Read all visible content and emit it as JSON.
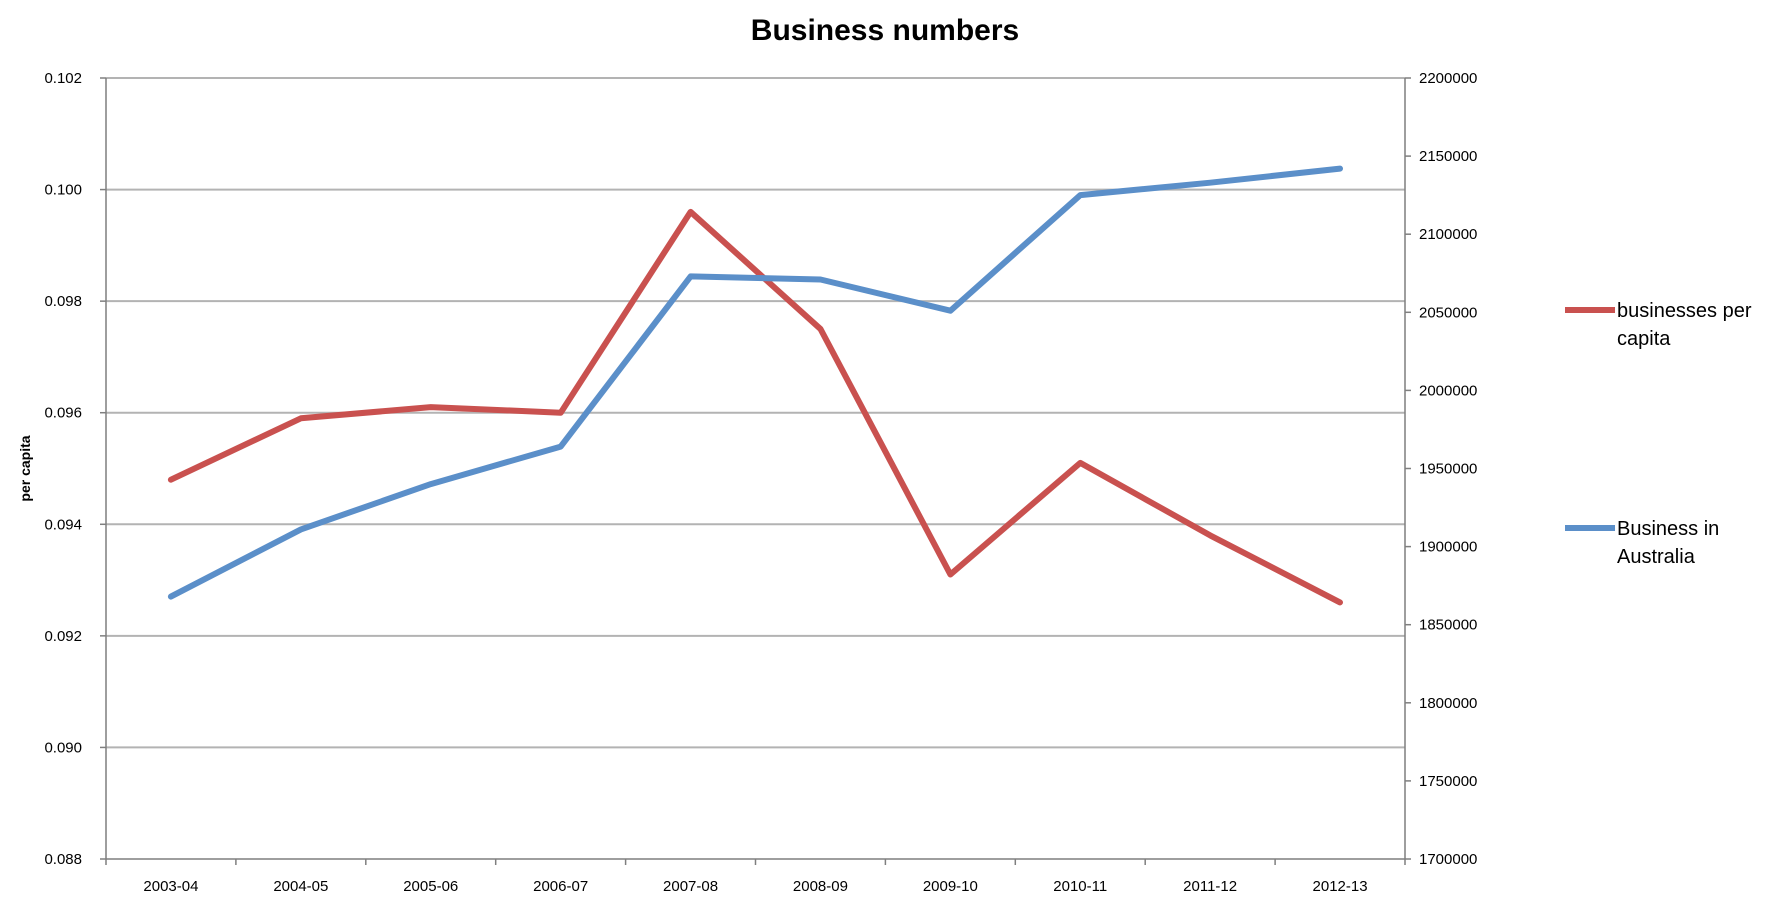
{
  "chart_data": {
    "type": "line",
    "title": "Business numbers",
    "xlabel": "",
    "ylabel": "per capita",
    "y2label": "",
    "categories": [
      "2003-04",
      "2004-05",
      "2005-06",
      "2006-07",
      "2007-08",
      "2008-09",
      "2009-10",
      "2010-11",
      "2011-12",
      "2012-13"
    ],
    "ylim": [
      0.088,
      0.102
    ],
    "yticks": [
      "0.088",
      "0.090",
      "0.092",
      "0.094",
      "0.096",
      "0.098",
      "0.100",
      "0.102"
    ],
    "y2lim": [
      1700000,
      2200000
    ],
    "y2ticks": [
      "1700000",
      "1750000",
      "1800000",
      "1850000",
      "1900000",
      "1950000",
      "2000000",
      "2050000",
      "2100000",
      "2150000",
      "2200000"
    ],
    "grid": true,
    "legend": "right",
    "series": [
      {
        "name": "businesses per capita",
        "legend_lines": [
          "businesses per",
          "capita"
        ],
        "axis": "left",
        "color": "#c9514f",
        "values": [
          0.0948,
          0.0959,
          0.0961,
          0.096,
          0.0996,
          0.0975,
          0.0931,
          0.0951,
          0.0938,
          0.0926
        ]
      },
      {
        "name": "Business in Australia",
        "legend_lines": [
          "Business in",
          "Australia"
        ],
        "axis": "right",
        "color": "#5b8fc9",
        "values": [
          1868000,
          1911000,
          1940000,
          1964000,
          2073000,
          2071000,
          2051000,
          2125000,
          2133000,
          2142000
        ]
      }
    ]
  }
}
